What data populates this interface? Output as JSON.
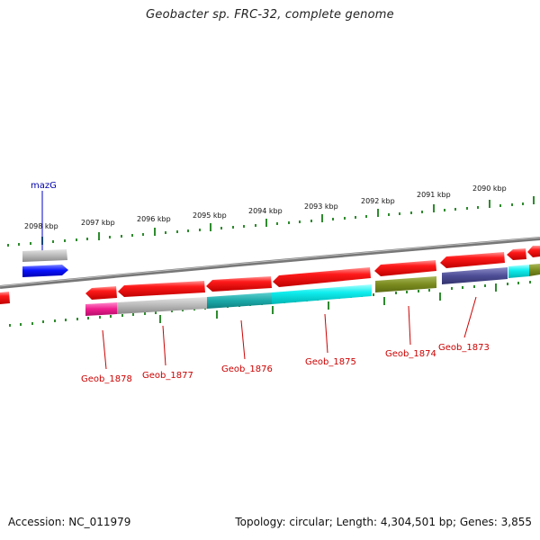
{
  "title": "Geobacter sp. FRC-32, complete genome",
  "footer": {
    "accession": "Accession: NC_011979",
    "summary": "Topology: circular; Length: 4,304,501 bp; Genes: 3,855"
  },
  "colors": {
    "forward_gene": "#e8000b",
    "backbone": "#888888",
    "tick": "#2e8b2e",
    "gene_label": "#cc0000",
    "mazG_label": "#0000aa",
    "mazG_gene": "#0a14ff"
  },
  "kbp_ticks": [
    "2098 kbp",
    "2097 kbp",
    "2096 kbp",
    "2095 kbp",
    "2094 kbp",
    "2093 kbp",
    "2092 kbp",
    "2091 kbp",
    "2090 kbp"
  ],
  "highlight": {
    "label": "mazG"
  },
  "gene_labels": [
    "Geob_1878",
    "Geob_1877",
    "Geob_1876",
    "Geob_1875",
    "Geob_1874",
    "Geob_1873"
  ]
}
